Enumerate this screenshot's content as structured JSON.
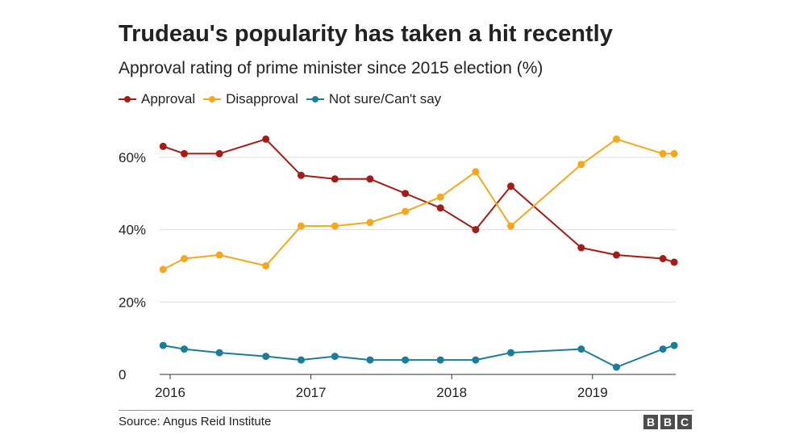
{
  "chart_data": {
    "type": "line",
    "title": "Trudeau's popularity has taken a hit recently",
    "subtitle": "Approval rating of prime minister since 2015 election (%)",
    "xlabel": "",
    "ylabel": "",
    "xlim": [
      2015.95,
      2019.65
    ],
    "ylim": [
      0,
      70
    ],
    "yticks": [
      0,
      20,
      40,
      60
    ],
    "ytick_labels": [
      "0",
      "20%",
      "40%",
      "60%"
    ],
    "xticks": [
      2016,
      2017,
      2018,
      2019
    ],
    "xtick_labels": [
      "2016",
      "2017",
      "2018",
      "2019"
    ],
    "grid": true,
    "legend_position": "top-left",
    "x": [
      2015.95,
      2016.1,
      2016.35,
      2016.68,
      2016.93,
      2017.17,
      2017.42,
      2017.67,
      2017.92,
      2018.17,
      2018.42,
      2018.92,
      2019.17,
      2019.5,
      2019.58
    ],
    "series": [
      {
        "name": "Approval",
        "color": "#a41c15",
        "values": [
          63,
          61,
          61,
          65,
          55,
          54,
          54,
          50,
          46,
          40,
          52,
          35,
          33,
          32,
          31
        ]
      },
      {
        "name": "Disapproval",
        "color": "#f5a81c",
        "values": [
          29,
          32,
          33,
          30,
          41,
          41,
          42,
          45,
          49,
          56,
          41,
          58,
          65,
          61,
          61
        ]
      },
      {
        "name": "Not sure/Can't say",
        "color": "#1b7d9a",
        "values": [
          8,
          7,
          6,
          5,
          4,
          5,
          4,
          4,
          4,
          4,
          6,
          7,
          2,
          7,
          8
        ]
      }
    ]
  },
  "footer": {
    "source": "Source: Angus Reid Institute",
    "logo_letters": [
      "B",
      "B",
      "C"
    ]
  }
}
